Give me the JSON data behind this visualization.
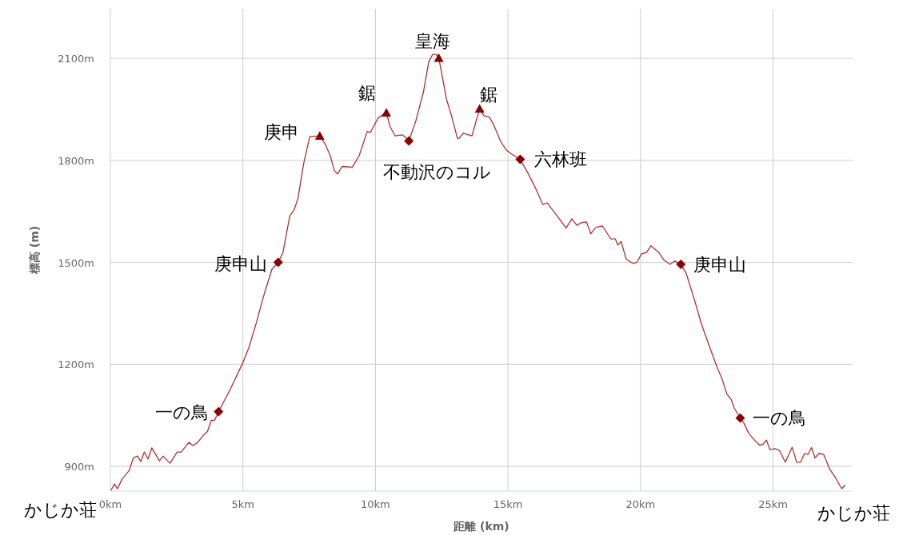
{
  "chart_data": {
    "type": "line",
    "xlabel": "距離 (km)",
    "ylabel": "標高 (m)",
    "xlim": [
      0,
      28
    ],
    "ylim": [
      827,
      2246
    ],
    "xticks": [
      {
        "value": 0,
        "label": "0km"
      },
      {
        "value": 5,
        "label": "5km"
      },
      {
        "value": 10,
        "label": "10km"
      },
      {
        "value": 15,
        "label": "15km"
      },
      {
        "value": 20,
        "label": "20km"
      },
      {
        "value": 25,
        "label": "25km"
      }
    ],
    "yticks": [
      {
        "value": 900,
        "label": "900m"
      },
      {
        "value": 1200,
        "label": "1200m"
      },
      {
        "value": 1500,
        "label": "1500m"
      },
      {
        "value": 1800,
        "label": "1800m"
      },
      {
        "value": 2100,
        "label": "2100m"
      }
    ],
    "grid": true,
    "series": [
      {
        "color": "#b03030",
        "marker": "none",
        "x": [
          0.03,
          0.15,
          0.27,
          0.44,
          0.71,
          0.87,
          1.02,
          1.15,
          1.28,
          1.42,
          1.56,
          1.85,
          1.99,
          2.25,
          2.52,
          2.67,
          2.96,
          3.12,
          3.29,
          3.55,
          3.66,
          3.81,
          3.93,
          4.08,
          4.5,
          5.0,
          5.22,
          5.51,
          5.77,
          6.09,
          6.33,
          6.51,
          6.77,
          6.93,
          7.08,
          7.29,
          7.52,
          7.9,
          8.09,
          8.29,
          8.45,
          8.57,
          8.74,
          9.13,
          9.39,
          9.69,
          9.81,
          10.1,
          10.41,
          10.55,
          10.74,
          11.0,
          11.1,
          11.26,
          11.52,
          11.81,
          12.01,
          12.16,
          12.29,
          12.39,
          12.68,
          12.87,
          13.09,
          13.16,
          13.32,
          13.64,
          13.93,
          14.1,
          14.29,
          14.46,
          14.72,
          14.94,
          15.15,
          15.46,
          15.77,
          16.09,
          16.31,
          16.48,
          16.65,
          16.93,
          17.19,
          17.41,
          17.6,
          17.77,
          17.96,
          18.12,
          18.29,
          18.36,
          18.56,
          18.88,
          19.05,
          19.14,
          19.27,
          19.46,
          19.71,
          19.85,
          20.04,
          20.23,
          20.39,
          20.69,
          20.88,
          21.11,
          21.29,
          21.52,
          21.72,
          22.04,
          22.3,
          22.62,
          22.91,
          23.07,
          23.26,
          23.43,
          23.53,
          23.76,
          23.9,
          24.08,
          24.3,
          24.49,
          24.62,
          24.75,
          24.88,
          25.07,
          25.24,
          25.46,
          25.72,
          25.89,
          26.04,
          26.19,
          26.32,
          26.45,
          26.58,
          26.74,
          26.91,
          27.13,
          27.35,
          27.59,
          27.71
        ],
        "values": [
          830,
          848,
          834,
          862,
          888,
          925,
          930,
          914,
          942,
          921,
          954,
          916,
          930,
          909,
          942,
          942,
          970,
          961,
          970,
          995,
          1002,
          1035,
          1035,
          1061,
          1123,
          1205,
          1248,
          1323,
          1398,
          1479,
          1500,
          1529,
          1637,
          1654,
          1689,
          1790,
          1870,
          1872,
          1850,
          1815,
          1770,
          1760,
          1782,
          1780,
          1815,
          1885,
          1882,
          1925,
          1940,
          1900,
          1872,
          1875,
          1870,
          1857,
          1915,
          2001,
          2090,
          2112,
          2112,
          2101,
          1980,
          1931,
          1865,
          1865,
          1880,
          1872,
          1952,
          1931,
          1928,
          1905,
          1856,
          1830,
          1818,
          1803,
          1760,
          1710,
          1670,
          1675,
          1657,
          1629,
          1601,
          1628,
          1609,
          1617,
          1619,
          1584,
          1601,
          1604,
          1607,
          1569,
          1569,
          1551,
          1561,
          1509,
          1497,
          1499,
          1525,
          1529,
          1549,
          1529,
          1507,
          1494,
          1504,
          1494,
          1468,
          1388,
          1318,
          1248,
          1187,
          1158,
          1112,
          1095,
          1072,
          1042,
          1027,
          997,
          977,
          962,
          965,
          977,
          949,
          952,
          947,
          912,
          956,
          912,
          912,
          938,
          935,
          955,
          925,
          938,
          935,
          892,
          867,
          834,
          844
        ]
      },
      {
        "type": "scatter",
        "color": "#8b0000",
        "marker": "triangle",
        "x": [
          7.9,
          10.41,
          12.39,
          13.93
        ],
        "values": [
          1872,
          1940,
          2101,
          1952
        ]
      },
      {
        "type": "scatter",
        "color": "#8b0000",
        "marker": "diamond",
        "x": [
          4.08,
          6.33,
          11.26,
          15.46,
          21.52,
          23.76
        ],
        "values": [
          1061,
          1500,
          1857,
          1803,
          1494,
          1042
        ]
      }
    ],
    "annotations": [
      {
        "text": "一の鳥",
        "x": 4.08,
        "y": 1061
      },
      {
        "text": "庚申山",
        "x": 6.33,
        "y": 1500
      },
      {
        "text": "庚申",
        "x": 7.9,
        "y": 1872
      },
      {
        "text": "鋸",
        "x": 10.41,
        "y": 1940
      },
      {
        "text": "不動沢のコル",
        "x": 11.26,
        "y": 1857
      },
      {
        "text": "皇海",
        "x": 12.39,
        "y": 2101
      },
      {
        "text": "鋸",
        "x": 13.93,
        "y": 1952
      },
      {
        "text": "六林班",
        "x": 15.46,
        "y": 1803
      },
      {
        "text": "庚申山",
        "x": 21.52,
        "y": 1494
      },
      {
        "text": "一の鳥",
        "x": 23.76,
        "y": 1042
      },
      {
        "text": "かじか荘",
        "x": 0.03,
        "y": 830
      },
      {
        "text": "かじか荘",
        "x": 27.71,
        "y": 844
      }
    ]
  }
}
